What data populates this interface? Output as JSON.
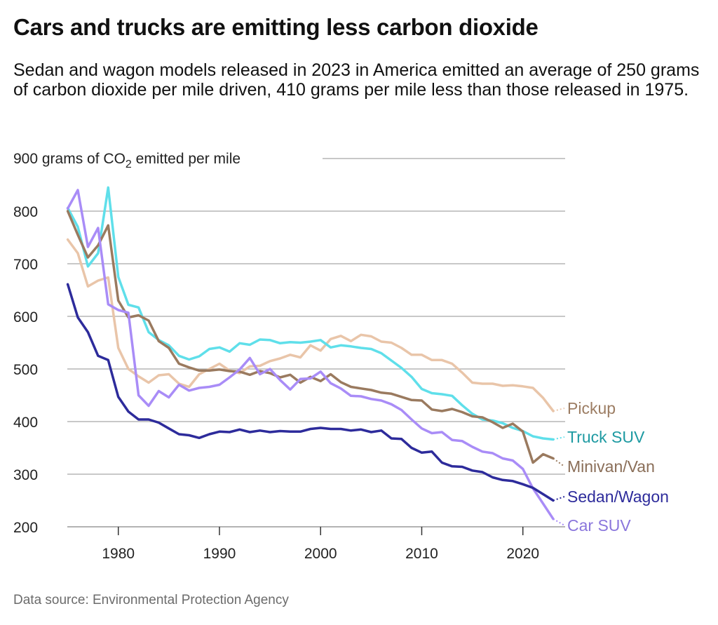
{
  "header": {
    "title": "Cars and trucks are emitting less carbon dioxide",
    "subtitle": "Sedan and wagon models released in 2023 in America emitted an average of 250 grams of carbon dioxide per mile driven, 410 grams per mile less than those released in 1975."
  },
  "footer": {
    "source": "Data source: Environmental Protection Agency"
  },
  "chart_data": {
    "type": "line",
    "title": "Cars and trucks are emitting less carbon dioxide",
    "ylabel_prefix": "900 grams of CO",
    "ylabel_sub": "2",
    "ylabel_suffix": " emitted per mile",
    "xlabel": "",
    "ylim": [
      200,
      900
    ],
    "xlim": [
      1975,
      2023
    ],
    "yticks": [
      200,
      300,
      400,
      500,
      600,
      700,
      800
    ],
    "xticks": [
      1980,
      1990,
      2000,
      2010,
      2020
    ],
    "grid": true,
    "legend": "direct labels at right end of lines",
    "x": [
      1975,
      1976,
      1977,
      1978,
      1979,
      1980,
      1981,
      1982,
      1983,
      1984,
      1985,
      1986,
      1987,
      1988,
      1989,
      1990,
      1991,
      1992,
      1993,
      1994,
      1995,
      1996,
      1997,
      1998,
      1999,
      2000,
      2001,
      2002,
      2003,
      2004,
      2005,
      2006,
      2007,
      2008,
      2009,
      2010,
      2011,
      2012,
      2013,
      2014,
      2015,
      2016,
      2017,
      2018,
      2019,
      2020,
      2021,
      2022,
      2023
    ],
    "series": [
      {
        "name": "Pickup",
        "color": "#e9c5a9",
        "label_color": "#9c7d63",
        "values": [
          746,
          720,
          657,
          668,
          674,
          540,
          500,
          486,
          474,
          488,
          490,
          472,
          466,
          490,
          500,
          510,
          497,
          492,
          505,
          506,
          515,
          520,
          527,
          522,
          545,
          535,
          557,
          563,
          553,
          565,
          562,
          552,
          550,
          540,
          527,
          527,
          517,
          517,
          510,
          493,
          474,
          472,
          472,
          468,
          469,
          467,
          464,
          445,
          420
        ]
      },
      {
        "name": "Truck SUV",
        "color": "#5fdfea",
        "label_color": "#1e9aa2",
        "values": [
          806,
          770,
          695,
          720,
          845,
          675,
          622,
          617,
          570,
          555,
          545,
          525,
          518,
          524,
          538,
          541,
          533,
          549,
          546,
          556,
          555,
          549,
          551,
          550,
          552,
          555,
          541,
          545,
          543,
          540,
          538,
          530,
          516,
          502,
          485,
          462,
          454,
          452,
          449,
          431,
          415,
          404,
          402,
          397,
          388,
          382,
          372,
          368,
          366
        ]
      },
      {
        "name": "Minivan/Van",
        "color": "#9a7a5f",
        "label_color": "#8a6e58",
        "values": [
          800,
          755,
          712,
          735,
          773,
          630,
          598,
          602,
          592,
          553,
          540,
          510,
          503,
          497,
          497,
          499,
          496,
          495,
          489,
          496,
          492,
          484,
          489,
          474,
          485,
          477,
          490,
          475,
          466,
          463,
          460,
          455,
          453,
          447,
          441,
          440,
          423,
          420,
          424,
          418,
          410,
          408,
          399,
          388,
          396,
          381,
          322,
          338,
          330
        ]
      },
      {
        "name": "Sedan/Wagon",
        "color": "#2d2b9b",
        "label_color": "#2d2b9b",
        "values": [
          661,
          598,
          570,
          525,
          517,
          447,
          419,
          404,
          404,
          398,
          387,
          376,
          374,
          369,
          376,
          381,
          380,
          385,
          380,
          383,
          380,
          382,
          381,
          381,
          386,
          388,
          386,
          386,
          383,
          385,
          380,
          383,
          368,
          367,
          350,
          341,
          343,
          322,
          315,
          314,
          307,
          304,
          294,
          289,
          287,
          281,
          274,
          262,
          250
        ]
      },
      {
        "name": "Car SUV",
        "color": "#a98cf7",
        "label_color": "#8a76dc",
        "values": [
          805,
          840,
          732,
          768,
          623,
          612,
          607,
          450,
          430,
          458,
          446,
          470,
          459,
          464,
          466,
          470,
          484,
          499,
          521,
          490,
          500,
          479,
          461,
          481,
          482,
          495,
          473,
          463,
          449,
          448,
          443,
          440,
          433,
          422,
          404,
          387,
          378,
          380,
          365,
          363,
          352,
          343,
          340,
          330,
          326,
          310,
          273,
          244,
          215
        ]
      }
    ]
  }
}
